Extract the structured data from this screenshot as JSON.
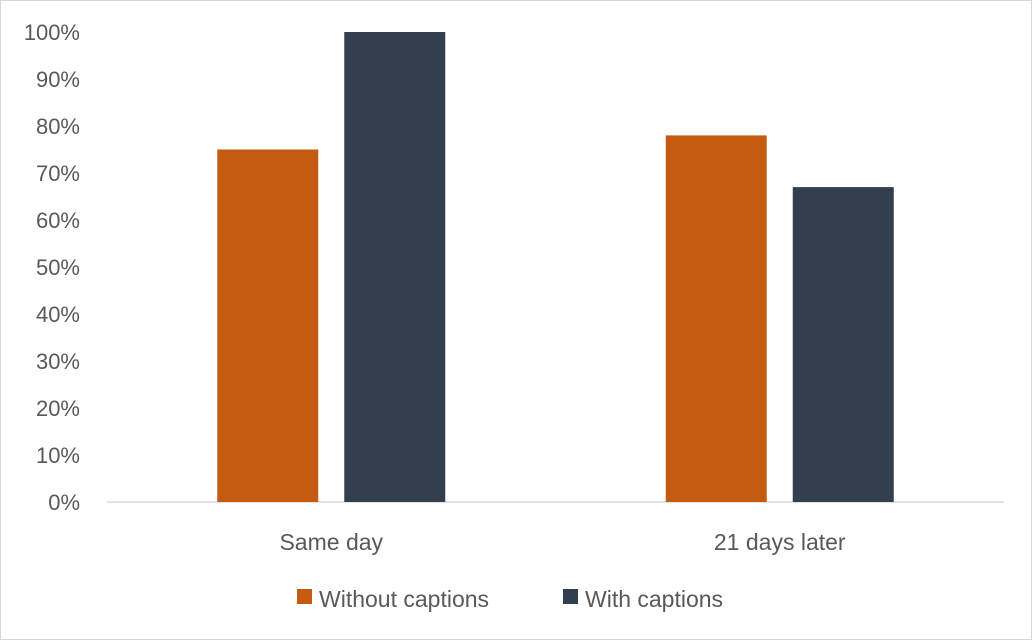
{
  "chart_data": {
    "type": "bar",
    "title": "",
    "xlabel": "",
    "ylabel": "",
    "categories": [
      "Same day",
      "21 days later"
    ],
    "series": [
      {
        "name": "Without captions",
        "color": "#C55A11",
        "values": [
          75,
          78
        ]
      },
      {
        "name": "With captions",
        "color": "#333F4F",
        "values": [
          100,
          67
        ]
      }
    ],
    "ylim": [
      0,
      100
    ],
    "yticks": [
      0,
      10,
      20,
      30,
      40,
      50,
      60,
      70,
      80,
      90,
      100
    ],
    "ytick_format": "percent",
    "ytick_labels": [
      "0%",
      "10%",
      "20%",
      "30%",
      "40%",
      "50%",
      "60%",
      "70%",
      "80%",
      "90%",
      "100%"
    ],
    "grid": false,
    "legend_position": "bottom"
  }
}
